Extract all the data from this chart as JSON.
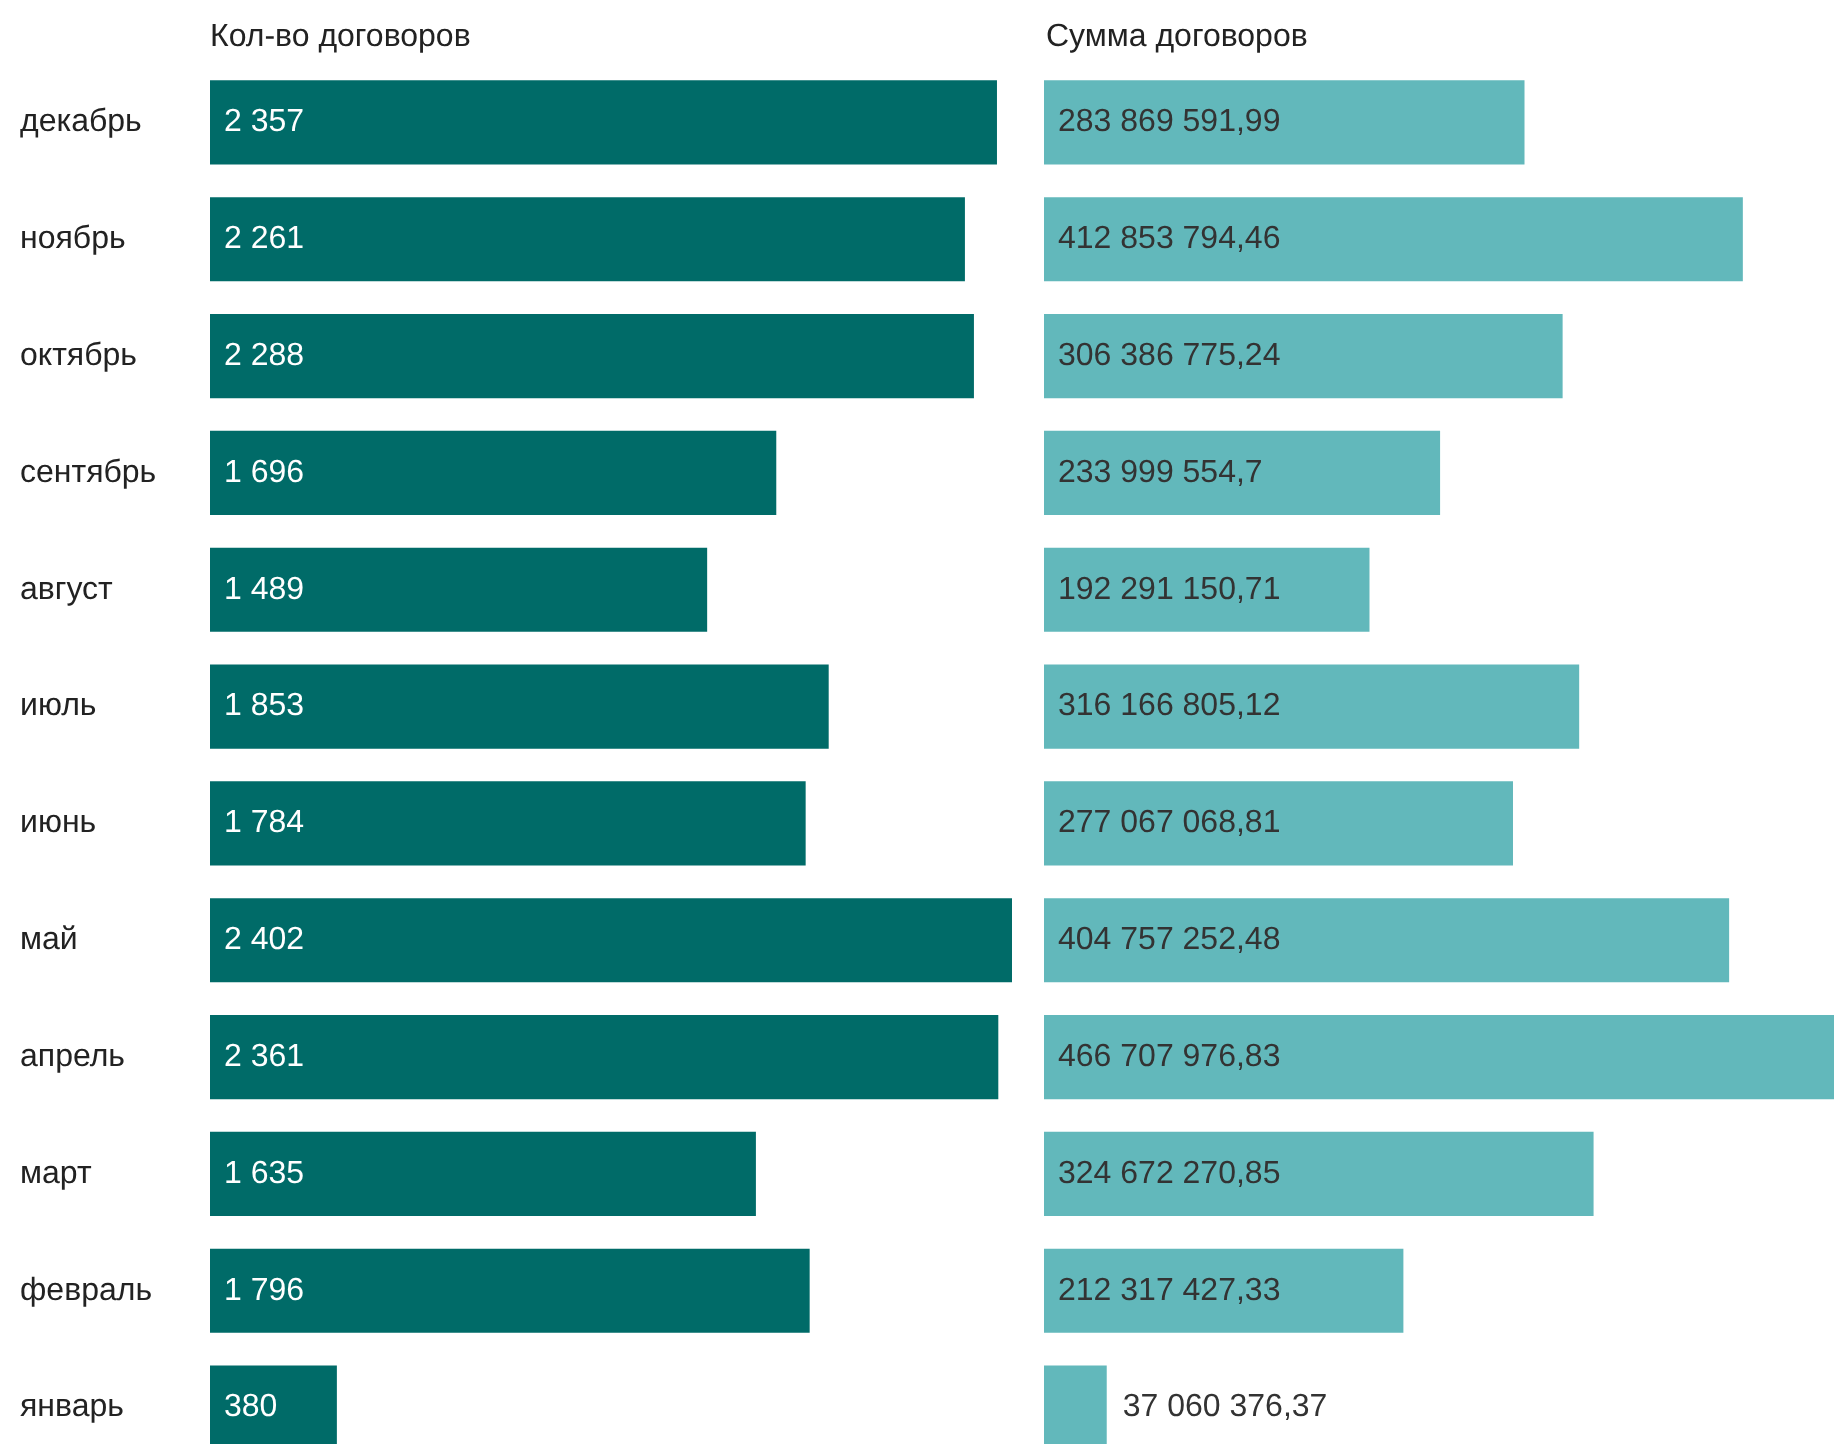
{
  "chart_data": [
    {
      "type": "bar",
      "orientation": "horizontal",
      "title": "Кол-во договоров",
      "tick_labels": "y",
      "color": "#006b68",
      "categories": [
        "декабрь",
        "ноябрь",
        "октябрь",
        "сентябрь",
        "август",
        "июль",
        "июнь",
        "май",
        "апрель",
        "март",
        "февраль",
        "январь"
      ],
      "values": [
        2357,
        2261,
        2288,
        1696,
        1489,
        1853,
        1784,
        2402,
        2361,
        1635,
        1796,
        380
      ],
      "value_labels": [
        "2 357",
        "2 261",
        "2 288",
        "1 696",
        "1 489",
        "1 853",
        "1 784",
        "2 402",
        "2 361",
        "1 635",
        "1 796",
        "380"
      ]
    },
    {
      "type": "bar",
      "orientation": "horizontal",
      "title": "Сумма договоров",
      "tick_labels": false,
      "color": "#62b8bb",
      "categories": [
        null,
        null,
        null,
        null,
        null,
        null,
        null,
        null,
        null,
        null,
        null,
        null
      ],
      "values": [
        283869591.99,
        412853794.46,
        306386775.24,
        233999554.7,
        192291150.71,
        316166805.12,
        277067068.81,
        404757252.48,
        466707976.83,
        324672270.85,
        212317427.33,
        37060376.37
      ],
      "value_labels": [
        "283 869 591,99",
        "412 853 794,46",
        "306 386 775,24",
        "233 999 554,7",
        "192 291 150,71",
        "316 166 805,12",
        "277 067 068,81",
        "404 757 252,48",
        "466 707 976,83",
        "324 672 270,85",
        "212 317 427,33",
        "37 060 376,37"
      ]
    }
  ]
}
